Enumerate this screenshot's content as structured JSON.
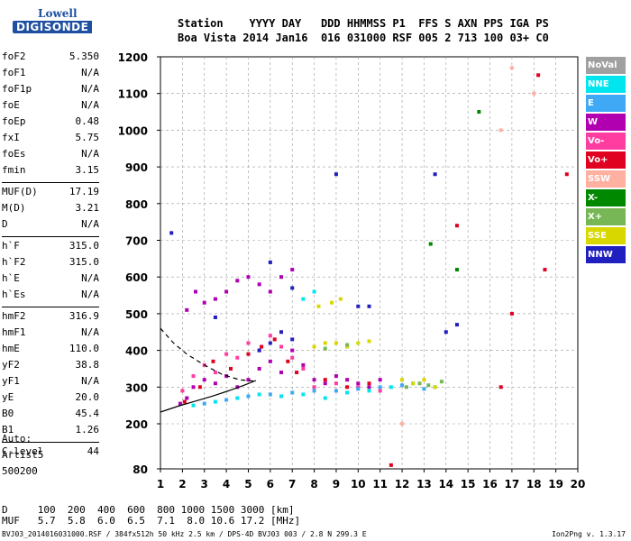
{
  "logo": {
    "line1": "Lowell",
    "line2": "DIGISONDE"
  },
  "header": {
    "line1": "Station    YYYY DAY   DDD HHMMSS P1  FFS S AXN PPS IGA PS",
    "line2": "Boa Vista 2014 Jan16  016 031000 RSF 005 2 713 100 03+ C0"
  },
  "params": [
    [
      {
        "k": "foF2",
        "v": "5.350"
      },
      {
        "k": "foF1",
        "v": "N/A"
      },
      {
        "k": "foF1p",
        "v": "N/A"
      },
      {
        "k": "foE",
        "v": "N/A"
      },
      {
        "k": "foEp",
        "v": "0.48"
      },
      {
        "k": "fxI",
        "v": "5.75"
      },
      {
        "k": "foEs",
        "v": "N/A"
      },
      {
        "k": "fmin",
        "v": "3.15"
      }
    ],
    [
      {
        "k": "MUF(D)",
        "v": "17.19"
      },
      {
        "k": "M(D)",
        "v": "3.21"
      },
      {
        "k": "D",
        "v": "N/A"
      }
    ],
    [
      {
        "k": "h`F",
        "v": "315.0"
      },
      {
        "k": "h`F2",
        "v": "315.0"
      },
      {
        "k": "h`E",
        "v": "N/A"
      },
      {
        "k": "h`Es",
        "v": "N/A"
      }
    ],
    [
      {
        "k": "hmF2",
        "v": "316.9"
      },
      {
        "k": "hmF1",
        "v": "N/A"
      },
      {
        "k": "hmE",
        "v": "110.0"
      },
      {
        "k": "yF2",
        "v": "38.8"
      },
      {
        "k": "yF1",
        "v": "N/A"
      },
      {
        "k": "yE",
        "v": "20.0"
      },
      {
        "k": "B0",
        "v": "45.4"
      },
      {
        "k": "B1",
        "v": "1.26"
      }
    ],
    [
      {
        "k": "C-level",
        "v": "44"
      }
    ]
  ],
  "auto": {
    "line1": "Auto:",
    "line2": "Artist5",
    "line3": "500200"
  },
  "footer": {
    "d_line": "D     100  200  400  600  800 1000 1500 3000 [km]",
    "muf_line": "MUF   5.7  5.8  6.0  6.5  7.1  8.0 10.6 17.2 [MHz]",
    "file": "BVJ03_2014016031000.RSF / 384fx512h 50 kHz 2.5 km / DPS-4D BVJ03 003 / 2.8 N 299.3 E",
    "version": "Ion2Png v. 1.3.17"
  },
  "legend": [
    {
      "label": "NoVal",
      "color": "#a0a0a0"
    },
    {
      "label": "NNE",
      "color": "#00e5ee"
    },
    {
      "label": "E",
      "color": "#3fa9f5"
    },
    {
      "label": "W",
      "color": "#b000b0"
    },
    {
      "label": "Vo-",
      "color": "#ff3ca0"
    },
    {
      "label": "Vo+",
      "color": "#e00020"
    },
    {
      "label": "SSW",
      "color": "#ffb0a0"
    },
    {
      "label": "X-",
      "color": "#008800"
    },
    {
      "label": "X+",
      "color": "#77b755"
    },
    {
      "label": "SSE",
      "color": "#d8d800"
    },
    {
      "label": "NNW",
      "color": "#2020c0"
    }
  ],
  "chart_data": {
    "type": "scatter",
    "xlabel": "",
    "ylabel": "",
    "xlim": [
      1,
      20
    ],
    "ylim": [
      80,
      1200
    ],
    "xticks": [
      "1",
      "2",
      "3",
      "4",
      "5",
      "6",
      "7",
      "8",
      "9",
      "10",
      "11",
      "12",
      "13",
      "14",
      "15",
      "16",
      "17",
      "18",
      "19",
      "20"
    ],
    "yticks": [
      "80",
      "200",
      "300",
      "400",
      "500",
      "600",
      "700",
      "800",
      "900",
      "1000",
      "1100",
      "1200"
    ],
    "grid": true,
    "series": [
      {
        "name": "W",
        "color": "#b000b0",
        "points": [
          [
            1.9,
            255
          ],
          [
            2.2,
            270
          ],
          [
            2.5,
            300
          ],
          [
            3.0,
            320
          ],
          [
            3.5,
            310
          ],
          [
            4.0,
            330
          ],
          [
            4.5,
            300
          ],
          [
            5.0,
            320
          ],
          [
            5.5,
            350
          ],
          [
            6.0,
            370
          ],
          [
            6.5,
            340
          ],
          [
            7.0,
            400
          ],
          [
            7.5,
            360
          ],
          [
            8.0,
            320
          ],
          [
            8.5,
            310
          ],
          [
            9.0,
            330
          ],
          [
            9.5,
            320
          ],
          [
            10.0,
            310
          ],
          [
            10.5,
            300
          ],
          [
            11.0,
            320
          ],
          [
            2.2,
            510
          ],
          [
            2.6,
            560
          ],
          [
            3.0,
            530
          ],
          [
            3.5,
            540
          ],
          [
            4.0,
            560
          ],
          [
            4.5,
            590
          ],
          [
            5.0,
            600
          ],
          [
            5.5,
            580
          ],
          [
            6.0,
            560
          ],
          [
            6.5,
            600
          ],
          [
            7.0,
            620
          ]
        ]
      },
      {
        "name": "Vo-",
        "color": "#ff3ca0",
        "points": [
          [
            2.0,
            290
          ],
          [
            2.5,
            330
          ],
          [
            3.0,
            360
          ],
          [
            3.5,
            340
          ],
          [
            4.0,
            390
          ],
          [
            4.5,
            380
          ],
          [
            5.0,
            420
          ],
          [
            5.5,
            400
          ],
          [
            6.0,
            440
          ],
          [
            6.5,
            410
          ],
          [
            7.0,
            380
          ],
          [
            7.5,
            350
          ],
          [
            8.0,
            300
          ],
          [
            9.0,
            310
          ],
          [
            10.0,
            300
          ],
          [
            11.0,
            290
          ]
        ]
      },
      {
        "name": "Vo+",
        "color": "#e00020",
        "points": [
          [
            2.1,
            260
          ],
          [
            2.8,
            300
          ],
          [
            3.4,
            370
          ],
          [
            4.2,
            350
          ],
          [
            5.0,
            390
          ],
          [
            5.6,
            410
          ],
          [
            6.2,
            430
          ],
          [
            6.8,
            370
          ],
          [
            7.2,
            340
          ],
          [
            8.5,
            320
          ],
          [
            9.5,
            300
          ],
          [
            10.5,
            310
          ],
          [
            11.5,
            90
          ],
          [
            14.5,
            740
          ],
          [
            16.5,
            300
          ],
          [
            18.2,
            1150
          ],
          [
            19.5,
            880
          ],
          [
            17.0,
            500
          ],
          [
            18.5,
            620
          ]
        ]
      },
      {
        "name": "NNE",
        "color": "#00e5ee",
        "points": [
          [
            2.5,
            250
          ],
          [
            3.5,
            260
          ],
          [
            4.5,
            270
          ],
          [
            5.5,
            280
          ],
          [
            6.5,
            275
          ],
          [
            7.5,
            280
          ],
          [
            8.5,
            270
          ],
          [
            9.5,
            285
          ],
          [
            10.5,
            290
          ],
          [
            11.5,
            300
          ],
          [
            12.5,
            310
          ],
          [
            13.5,
            300
          ],
          [
            8.0,
            560
          ],
          [
            7.5,
            540
          ]
        ]
      },
      {
        "name": "E",
        "color": "#3fa9f5",
        "points": [
          [
            3.0,
            255
          ],
          [
            4.0,
            265
          ],
          [
            5.0,
            275
          ],
          [
            6.0,
            280
          ],
          [
            7.0,
            285
          ],
          [
            8.0,
            290
          ],
          [
            9.0,
            290
          ],
          [
            10.0,
            295
          ],
          [
            11.0,
            300
          ],
          [
            12.0,
            305
          ],
          [
            13.0,
            295
          ]
        ]
      },
      {
        "name": "SSE",
        "color": "#d8d800",
        "points": [
          [
            8.0,
            410
          ],
          [
            8.5,
            420
          ],
          [
            9.0,
            420
          ],
          [
            9.5,
            410
          ],
          [
            10.0,
            420
          ],
          [
            10.5,
            425
          ],
          [
            8.2,
            520
          ],
          [
            8.8,
            530
          ],
          [
            9.2,
            540
          ],
          [
            12.0,
            320
          ],
          [
            12.5,
            310
          ],
          [
            13.0,
            320
          ],
          [
            13.5,
            300
          ]
        ]
      },
      {
        "name": "X+",
        "color": "#77b755",
        "points": [
          [
            12.2,
            300
          ],
          [
            12.8,
            310
          ],
          [
            13.2,
            305
          ],
          [
            13.8,
            315
          ],
          [
            8.5,
            405
          ],
          [
            9.5,
            415
          ]
        ]
      },
      {
        "name": "NNW",
        "color": "#2020c0",
        "points": [
          [
            5.5,
            400
          ],
          [
            6.0,
            420
          ],
          [
            6.5,
            450
          ],
          [
            7.0,
            430
          ],
          [
            6.0,
            640
          ],
          [
            7.0,
            570
          ],
          [
            9.0,
            880
          ],
          [
            10.0,
            520
          ],
          [
            10.5,
            520
          ],
          [
            14.0,
            450
          ],
          [
            14.5,
            470
          ],
          [
            13.5,
            880
          ],
          [
            3.5,
            490
          ],
          [
            1.5,
            720
          ]
        ]
      },
      {
        "name": "SSW",
        "color": "#ffb0a0",
        "points": [
          [
            12.0,
            200
          ],
          [
            17.0,
            1170
          ],
          [
            18.0,
            1100
          ],
          [
            16.5,
            1000
          ]
        ]
      },
      {
        "name": "X-",
        "color": "#008800",
        "points": [
          [
            13.3,
            690
          ],
          [
            14.5,
            620
          ],
          [
            15.5,
            1050
          ]
        ]
      }
    ],
    "curves": [
      {
        "color": "#000000",
        "style": "dashed",
        "points": [
          [
            1.0,
            460
          ],
          [
            1.6,
            420
          ],
          [
            2.2,
            390
          ],
          [
            3.0,
            360
          ],
          [
            3.8,
            335
          ],
          [
            4.6,
            320
          ],
          [
            5.35,
            316
          ]
        ]
      },
      {
        "color": "#000000",
        "style": "solid",
        "points": [
          [
            1.0,
            232
          ],
          [
            1.8,
            248
          ],
          [
            2.6,
            262
          ],
          [
            3.4,
            276
          ],
          [
            4.2,
            292
          ],
          [
            4.8,
            305
          ],
          [
            5.35,
            318
          ]
        ]
      }
    ]
  }
}
